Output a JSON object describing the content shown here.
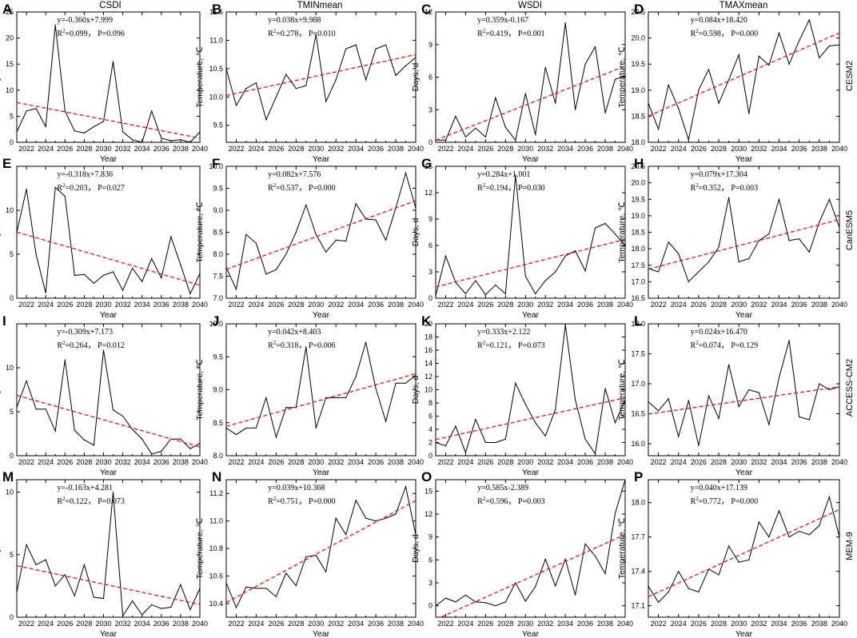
{
  "chart_data": {
    "type": "line",
    "column_titles": [
      "CSDI",
      "TMINmean",
      "WSDI",
      "TMAXmean"
    ],
    "row_labels": [
      "CESM2",
      "CanESM5",
      "ACCESS-CM2",
      "MEM-9"
    ],
    "xlabel": "Year",
    "ylabel_days": "Days, d",
    "ylabel_temp": "Temperature, ℃",
    "years": [
      2021,
      2022,
      2023,
      2024,
      2025,
      2026,
      2027,
      2028,
      2029,
      2030,
      2031,
      2032,
      2033,
      2034,
      2035,
      2036,
      2037,
      2038,
      2039,
      2040
    ],
    "x_ticks": [
      "2022",
      "2024",
      "2026",
      "2028",
      "2030",
      "2032",
      "2034",
      "2036",
      "2038",
      "2040"
    ],
    "panels": [
      {
        "letter": "A",
        "row": 0,
        "col": 0,
        "equation": "y=-0.360x+7.999",
        "r2_label": "R",
        "r2_value": "=0.099， P=0.096",
        "slope": -0.36,
        "intercept": 7.999,
        "ylim": [
          0,
          25
        ],
        "yticks": [
          "0",
          "5",
          "10",
          "15",
          "20",
          "25"
        ],
        "ytick_values": [
          0,
          5,
          10,
          15,
          20,
          25
        ],
        "values": [
          2,
          6,
          6.5,
          3,
          22.5,
          6,
          2.2,
          1.8,
          3,
          4,
          15.5,
          2,
          0.5,
          0,
          6,
          0.8,
          0.3,
          0.5,
          0,
          2
        ]
      },
      {
        "letter": "B",
        "row": 0,
        "col": 1,
        "equation": "y=0.038x+9.988",
        "r2_label": "R",
        "r2_value": "=0.278， P=0.010",
        "slope": 0.038,
        "intercept": 9.988,
        "ylim": [
          9.2,
          11.5
        ],
        "yticks": [
          "9.5",
          "10.0",
          "10.5",
          "11.0",
          "11.5"
        ],
        "ytick_values": [
          9.5,
          10.0,
          10.5,
          11.0,
          11.5
        ],
        "values": [
          10.5,
          9.85,
          10.15,
          10.25,
          9.6,
          10.0,
          10.4,
          10.15,
          10.2,
          11.1,
          9.92,
          10.3,
          10.85,
          10.92,
          10.3,
          10.85,
          10.92,
          10.38,
          10.55,
          10.7
        ]
      },
      {
        "letter": "C",
        "row": 0,
        "col": 2,
        "equation": "y=0.359x-0.167",
        "r2_label": "R",
        "r2_value": "=0.419， P=0.001",
        "slope": 0.359,
        "intercept": -0.167,
        "ylim": [
          0,
          12
        ],
        "yticks": [
          "0",
          "3",
          "6",
          "9",
          "12"
        ],
        "ytick_values": [
          0,
          3,
          6,
          9,
          12
        ],
        "values": [
          0.2,
          0.2,
          2.4,
          0.5,
          1.3,
          0.5,
          4.1,
          1.4,
          0.2,
          4.5,
          0.7,
          6.9,
          3.6,
          11,
          3,
          7.2,
          8.8,
          2.7,
          5.8,
          6.1
        ]
      },
      {
        "letter": "D",
        "row": 0,
        "col": 3,
        "equation": "y=0.084x+18.420",
        "r2_label": "R",
        "r2_value": "=0.598， P=0.000",
        "slope": 0.084,
        "intercept": 18.42,
        "ylim": [
          18.0,
          20.5
        ],
        "yticks": [
          "18.0",
          "18.5",
          "19.0",
          "19.5",
          "20.0",
          "20.5"
        ],
        "ytick_values": [
          18.0,
          18.5,
          19.0,
          19.5,
          20.0,
          20.5
        ],
        "values": [
          18.75,
          18.25,
          19.1,
          18.65,
          18.05,
          19.0,
          19.4,
          18.75,
          19.2,
          19.68,
          18.55,
          19.65,
          19.48,
          20.1,
          19.5,
          19.95,
          20.35,
          19.62,
          19.85,
          19.87
        ]
      },
      {
        "letter": "E",
        "row": 1,
        "col": 0,
        "equation": "y=-0.318x+7.836",
        "r2_label": "R",
        "r2_value": "=0.203， P=0.027",
        "slope": -0.318,
        "intercept": 7.836,
        "ylim": [
          0,
          15
        ],
        "yticks": [
          "0",
          "5",
          "10"
        ],
        "ytick_values": [
          0,
          5,
          10
        ],
        "values": [
          7.5,
          12.4,
          5,
          0.6,
          12.6,
          11.6,
          2.6,
          2.7,
          1.7,
          2.6,
          3,
          0.9,
          3.4,
          1.9,
          4.5,
          2.3,
          7,
          3.8,
          0.5,
          2.8
        ]
      },
      {
        "letter": "F",
        "row": 1,
        "col": 1,
        "equation": "y=0.082x+7.576",
        "r2_label": "R",
        "r2_value": "=0.537， P=0.000",
        "slope": 0.082,
        "intercept": 7.576,
        "ylim": [
          7.0,
          10.0
        ],
        "yticks": [
          "7.0",
          "7.5",
          "8.0",
          "8.5",
          "9.0",
          "9.5",
          "10.0"
        ],
        "ytick_values": [
          7.0,
          7.5,
          8.0,
          8.5,
          9.0,
          9.5,
          10.0
        ],
        "values": [
          7.7,
          7.2,
          8.45,
          8.25,
          7.55,
          7.65,
          8.0,
          8.5,
          9.12,
          8.45,
          8.05,
          8.32,
          8.3,
          9.15,
          8.8,
          8.78,
          8.32,
          9.05,
          9.85,
          9.05
        ]
      },
      {
        "letter": "G",
        "row": 1,
        "col": 2,
        "equation": "y=0.284x+1.001",
        "r2_label": "R",
        "r2_value": "=0.194， P=0.030",
        "slope": 0.284,
        "intercept": 1.001,
        "ylim": [
          0,
          15
        ],
        "yticks": [
          "0",
          "3",
          "6",
          "9",
          "12",
          "15"
        ],
        "ytick_values": [
          0,
          3,
          6,
          9,
          12,
          15
        ],
        "values": [
          0.3,
          4.8,
          1.8,
          0.5,
          2,
          0.4,
          1.5,
          0.5,
          14,
          2.5,
          0.5,
          2,
          3,
          4.8,
          5.4,
          3.1,
          8,
          8.5,
          7.3,
          6
        ]
      },
      {
        "letter": "H",
        "row": 1,
        "col": 3,
        "equation": "y=0.079x+17.304",
        "r2_label": "R",
        "r2_value": "=0.352， P=0.003",
        "slope": 0.079,
        "intercept": 17.304,
        "ylim": [
          16.5,
          20.5
        ],
        "yticks": [
          "16.5",
          "17.0",
          "17.5",
          "18.0",
          "18.5",
          "19.0",
          "19.5",
          "20.0",
          "20.5"
        ],
        "ytick_values": [
          16.5,
          17.0,
          17.5,
          18.0,
          18.5,
          19.0,
          19.5,
          20.0,
          20.5
        ],
        "values": [
          17.4,
          17.3,
          18.2,
          17.85,
          17.0,
          17.3,
          17.6,
          18.05,
          19.55,
          17.6,
          17.7,
          18.25,
          18.45,
          19.5,
          18.25,
          18.3,
          17.9,
          18.8,
          19.5,
          18.65
        ]
      },
      {
        "letter": "I",
        "row": 2,
        "col": 0,
        "equation": "y=-0.309x+7.173",
        "r2_label": "R",
        "r2_value": "=0.264， P=0.012",
        "slope": -0.309,
        "intercept": 7.173,
        "ylim": [
          0,
          15
        ],
        "yticks": [
          "0",
          "5",
          "10"
        ],
        "ytick_values": [
          0,
          5,
          10
        ],
        "values": [
          5.5,
          8.5,
          5.3,
          5.3,
          2.8,
          10.9,
          2.9,
          1.8,
          1.2,
          12,
          5.2,
          4.5,
          3,
          1.9,
          0.2,
          0.5,
          1.9,
          1.9,
          0.8,
          1.4
        ]
      },
      {
        "letter": "J",
        "row": 2,
        "col": 1,
        "equation": "y=0.042x+8.403",
        "r2_label": "R",
        "r2_value": "=0.318， P=0.006",
        "slope": 0.042,
        "intercept": 8.403,
        "ylim": [
          8.0,
          10.0
        ],
        "yticks": [
          "8.0",
          "8.5",
          "9.0",
          "9.5",
          "10.0"
        ],
        "ytick_values": [
          8.0,
          8.5,
          9.0,
          9.5,
          10.0
        ],
        "values": [
          8.42,
          8.32,
          8.42,
          8.42,
          8.88,
          8.28,
          8.73,
          8.73,
          9.65,
          8.42,
          8.88,
          8.88,
          8.88,
          9.2,
          9.72,
          9.02,
          8.52,
          9.1,
          9.1,
          9.22
        ]
      },
      {
        "letter": "K",
        "row": 2,
        "col": 2,
        "equation": "y=0.333x+2.122",
        "r2_label": "R",
        "r2_value": "=0.121， P=0.073",
        "slope": 0.333,
        "intercept": 2.122,
        "ylim": [
          0,
          20
        ],
        "yticks": [
          "0",
          "2",
          "4",
          "6",
          "8",
          "10",
          "12",
          "14",
          "16",
          "18",
          "20"
        ],
        "ytick_values": [
          0,
          2,
          4,
          6,
          8,
          10,
          12,
          14,
          16,
          18,
          20
        ],
        "values": [
          2,
          1.5,
          4.5,
          0.5,
          5.5,
          2,
          2,
          2.5,
          11,
          7.8,
          5,
          3,
          7,
          19.8,
          8.5,
          2.5,
          0.3,
          10.2,
          5,
          8.5
        ]
      },
      {
        "letter": "L",
        "row": 2,
        "col": 3,
        "equation": "y=0.024x+16.470",
        "r2_label": "R",
        "r2_value": "=0.074， P=0.129",
        "slope": 0.024,
        "intercept": 16.47,
        "ylim": [
          15.8,
          18.0
        ],
        "yticks": [
          "16.0",
          "16.5",
          "17.0",
          "17.5",
          "18.0"
        ],
        "ytick_values": [
          16.0,
          16.5,
          17.0,
          17.5,
          18.0
        ],
        "values": [
          16.7,
          16.55,
          16.75,
          16.12,
          16.72,
          15.97,
          16.8,
          16.42,
          17.32,
          16.62,
          16.9,
          16.85,
          16.32,
          17.1,
          17.72,
          16.45,
          16.4,
          17.0,
          16.9,
          16.95
        ]
      },
      {
        "letter": "M",
        "row": 3,
        "col": 0,
        "equation": "y=-0.163x+4.281",
        "r2_label": "R",
        "r2_value": "=0.122， P=0.073",
        "slope": -0.163,
        "intercept": 4.281,
        "ylim": [
          0,
          11
        ],
        "yticks": [
          "0",
          "5",
          "10"
        ],
        "ytick_values": [
          0,
          5,
          10
        ],
        "values": [
          2,
          5.8,
          4.2,
          4.6,
          2.5,
          3.4,
          1.7,
          4.2,
          1.6,
          1.5,
          10,
          0.1,
          1.3,
          0.2,
          1,
          0.7,
          0.8,
          2.6,
          0.6,
          2.3
        ]
      },
      {
        "letter": "N",
        "row": 3,
        "col": 1,
        "equation": "y=0.039x+10.368",
        "r2_label": "R",
        "r2_value": "=0.751， P=0.000",
        "slope": 0.039,
        "intercept": 10.368,
        "ylim": [
          10.3,
          11.3
        ],
        "yticks": [
          "10.4",
          "10.6",
          "10.8",
          "11.0",
          "11.2"
        ],
        "ytick_values": [
          10.4,
          10.6,
          10.8,
          11.0,
          11.2
        ],
        "values": [
          10.55,
          10.37,
          10.52,
          10.51,
          10.51,
          10.45,
          10.62,
          10.53,
          10.74,
          10.75,
          10.63,
          11.02,
          10.9,
          11.15,
          11.02,
          11.0,
          11.02,
          11.05,
          11.25,
          10.9
        ]
      },
      {
        "letter": "O",
        "row": 3,
        "col": 2,
        "equation": "y=0.585x-2.389",
        "r2_label": "R",
        "r2_value": "=0.596， P=0.003",
        "slope": 0.585,
        "intercept": -2.389,
        "ylim": [
          -1.5,
          16.5
        ],
        "yticks": [
          "0",
          "3",
          "6",
          "9",
          "12",
          "15"
        ],
        "ytick_values": [
          0,
          3,
          6,
          9,
          12,
          15
        ],
        "values": [
          0,
          1,
          0.5,
          1.4,
          0.5,
          0.4,
          0,
          0.5,
          3,
          0.6,
          2.5,
          6.1,
          2.6,
          6.1,
          1.4,
          8.1,
          6.5,
          4.2,
          12.1,
          16.5
        ]
      },
      {
        "letter": "P",
        "row": 3,
        "col": 3,
        "equation": "y=0.040x+17.139",
        "r2_label": "R",
        "r2_value": "=0.772， P=0.000",
        "slope": 0.04,
        "intercept": 17.139,
        "ylim": [
          17.0,
          18.2
        ],
        "yticks": [
          "17.1",
          "17.4",
          "17.7",
          "18.0"
        ],
        "ytick_values": [
          17.1,
          17.4,
          17.7,
          18.0
        ],
        "values": [
          17.27,
          17.13,
          17.22,
          17.4,
          17.25,
          17.22,
          17.42,
          17.37,
          17.62,
          17.48,
          17.5,
          17.83,
          17.7,
          17.93,
          17.7,
          17.75,
          17.72,
          17.8,
          18.05,
          17.7
        ]
      }
    ]
  }
}
